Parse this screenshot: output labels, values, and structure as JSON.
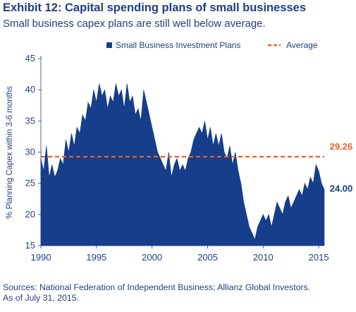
{
  "header": {
    "title": "Exhibit 12: Capital spending plans of small businesses",
    "subtitle": "Small business capex plans are still well below average."
  },
  "footer": {
    "source_line1": "Sources: National Federation of Independent Business; Allianz Global Investors.",
    "source_line2": "As of July 31, 2015."
  },
  "colors": {
    "series": "#163e8a",
    "average": "#e3622a",
    "text": "#1f3f84"
  },
  "chart_data": {
    "type": "area",
    "ylabel": "% Planning Capex within 3-6 months",
    "xlabel": "",
    "ylim": [
      15,
      45
    ],
    "xlim": [
      1990,
      2015.5
    ],
    "y_ticks": [
      "45",
      "40",
      "35",
      "30",
      "25",
      "20",
      "15"
    ],
    "x_ticks": [
      "1990",
      "1995",
      "2000",
      "2005",
      "2010",
      "2015"
    ],
    "legend": {
      "position": "top-center",
      "series_label": "Small Business Investment Plans",
      "average_label": "Average"
    },
    "average": {
      "value": 29.26,
      "label": "29.26"
    },
    "latest": {
      "value": 24.0,
      "label": "24.00"
    },
    "series": [
      {
        "name": "Small Business Investment Plans",
        "x": [
          1990.0,
          1990.25,
          1990.5,
          1990.75,
          1991.0,
          1991.25,
          1991.5,
          1991.75,
          1992.0,
          1992.25,
          1992.5,
          1992.75,
          1993.0,
          1993.25,
          1993.5,
          1993.75,
          1994.0,
          1994.25,
          1994.5,
          1994.75,
          1995.0,
          1995.25,
          1995.5,
          1995.75,
          1996.0,
          1996.25,
          1996.5,
          1996.75,
          1997.0,
          1997.25,
          1997.5,
          1997.75,
          1998.0,
          1998.25,
          1998.5,
          1998.75,
          1999.0,
          1999.25,
          1999.5,
          1999.75,
          2000.0,
          2000.25,
          2000.5,
          2000.75,
          2001.0,
          2001.25,
          2001.5,
          2001.75,
          2002.0,
          2002.25,
          2002.5,
          2002.75,
          2003.0,
          2003.25,
          2003.5,
          2003.75,
          2004.0,
          2004.25,
          2004.5,
          2004.75,
          2005.0,
          2005.25,
          2005.5,
          2005.75,
          2006.0,
          2006.25,
          2006.5,
          2006.75,
          2007.0,
          2007.25,
          2007.5,
          2007.75,
          2008.0,
          2008.25,
          2008.5,
          2008.75,
          2009.0,
          2009.25,
          2009.5,
          2009.75,
          2010.0,
          2010.25,
          2010.5,
          2010.75,
          2011.0,
          2011.25,
          2011.5,
          2011.75,
          2012.0,
          2012.25,
          2012.5,
          2012.75,
          2013.0,
          2013.25,
          2013.5,
          2013.75,
          2014.0,
          2014.25,
          2014.5,
          2014.75,
          2015.0,
          2015.25,
          2015.5
        ],
        "values": [
          29,
          27,
          31,
          26,
          28,
          26,
          27,
          29,
          28,
          32,
          30,
          33,
          31,
          34,
          33,
          36,
          35,
          38,
          37,
          40,
          38,
          41,
          39,
          40,
          37,
          39,
          38,
          41,
          39,
          40,
          37,
          41,
          38,
          39,
          36,
          37,
          35,
          40,
          38,
          36,
          34,
          32,
          30,
          29,
          28,
          27,
          30,
          26,
          28,
          29,
          27,
          28,
          27,
          29,
          30,
          32,
          33,
          34,
          33,
          35,
          32,
          34,
          31,
          33,
          31,
          33,
          30,
          29,
          31,
          28,
          30,
          27,
          25,
          22,
          20,
          18,
          17,
          16,
          18,
          19,
          20,
          19,
          20,
          18,
          20,
          22,
          21,
          20,
          22,
          23,
          21,
          22,
          23,
          24,
          23,
          25,
          24,
          26,
          25,
          28,
          27,
          25,
          24
        ]
      }
    ]
  }
}
